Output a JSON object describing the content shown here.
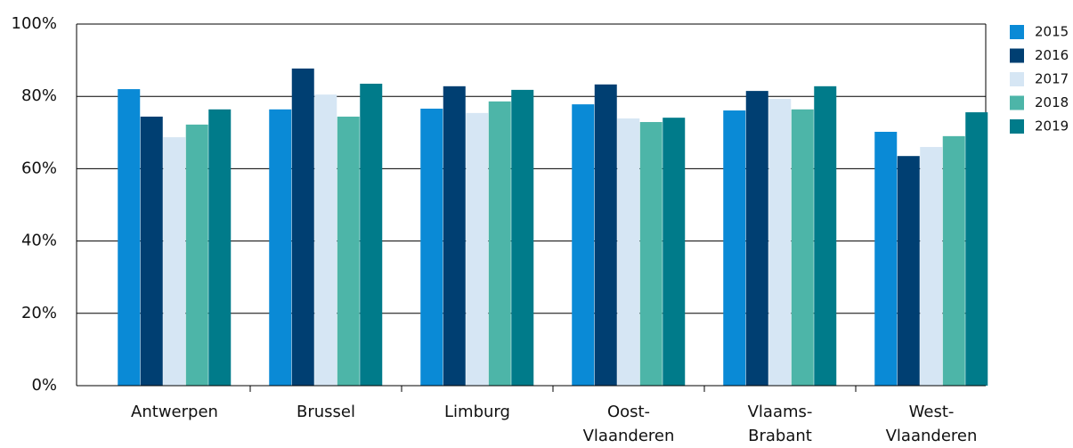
{
  "chart_data": {
    "type": "bar",
    "categories": [
      "Antwerpen",
      "Brussel",
      "Limburg",
      "Oost-Vlaanderen",
      "Vlaams-Brabant",
      "West-Vlaanderen"
    ],
    "series": [
      {
        "name": "2015",
        "color": "#0a8ad6",
        "values": [
          82.0,
          76.4,
          76.6,
          77.8,
          76.1,
          70.2
        ]
      },
      {
        "name": "2016",
        "color": "#003f72",
        "values": [
          74.4,
          87.7,
          82.8,
          83.3,
          81.5,
          63.5
        ]
      },
      {
        "name": "2017",
        "color": "#d6e6f4",
        "values": [
          68.7,
          80.5,
          75.4,
          73.9,
          79.3,
          66.0
        ]
      },
      {
        "name": "2018",
        "color": "#4db5a8",
        "values": [
          72.2,
          74.4,
          78.6,
          72.9,
          76.4,
          69.0
        ]
      },
      {
        "name": "2019",
        "color": "#007b8a",
        "values": [
          76.4,
          83.5,
          81.8,
          74.1,
          82.8,
          75.6
        ]
      }
    ],
    "ylim": [
      0,
      100
    ],
    "yticks": [
      {
        "value": 0,
        "label": "0%"
      },
      {
        "value": 20,
        "label": "20%"
      },
      {
        "value": 40,
        "label": "40%"
      },
      {
        "value": 60,
        "label": "60%"
      },
      {
        "value": 80,
        "label": "80%"
      },
      {
        "value": 100,
        "label": "100%"
      }
    ],
    "grid": true,
    "legend": "right"
  }
}
